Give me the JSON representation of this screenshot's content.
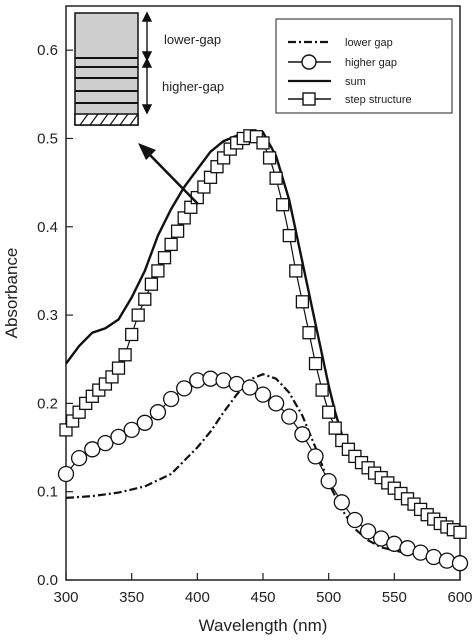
{
  "chart_data": {
    "type": "line",
    "xlabel": "Wavelength (nm)",
    "ylabel": "Absorbance",
    "xlim": [
      300,
      600
    ],
    "ylim": [
      0.0,
      0.65
    ],
    "xticks": [
      "300",
      "350",
      "400",
      "450",
      "500",
      "550",
      "600"
    ],
    "yticks": [
      "0.0",
      "0.1",
      "0.2",
      "0.3",
      "0.4",
      "0.5",
      "0.6"
    ],
    "grid": false,
    "legend_position": "top-right",
    "series": [
      {
        "name": "lower gap",
        "style": "dash-dot",
        "x": [
          300,
          320,
          340,
          360,
          380,
          400,
          410,
          420,
          430,
          440,
          450,
          460,
          470,
          480,
          490,
          500,
          510,
          520,
          530,
          540,
          560,
          580,
          600
        ],
        "y": [
          0.093,
          0.095,
          0.099,
          0.106,
          0.12,
          0.15,
          0.168,
          0.19,
          0.21,
          0.227,
          0.233,
          0.228,
          0.212,
          0.186,
          0.15,
          0.11,
          0.08,
          0.058,
          0.045,
          0.037,
          0.03,
          0.027,
          0.025
        ]
      },
      {
        "name": "higher gap",
        "style": "circle",
        "x": [
          300,
          310,
          320,
          330,
          340,
          350,
          360,
          370,
          380,
          390,
          400,
          410,
          420,
          430,
          440,
          450,
          460,
          470,
          480,
          490,
          500,
          510,
          520,
          530,
          540,
          550,
          560,
          570,
          580,
          590,
          600
        ],
        "y": [
          0.12,
          0.138,
          0.148,
          0.155,
          0.162,
          0.17,
          0.178,
          0.19,
          0.205,
          0.217,
          0.226,
          0.228,
          0.226,
          0.222,
          0.218,
          0.21,
          0.2,
          0.185,
          0.165,
          0.14,
          0.112,
          0.088,
          0.068,
          0.055,
          0.047,
          0.041,
          0.036,
          0.031,
          0.026,
          0.022,
          0.019
        ]
      },
      {
        "name": "sum",
        "style": "solid",
        "x": [
          300,
          310,
          320,
          330,
          340,
          350,
          360,
          370,
          380,
          390,
          400,
          410,
          420,
          430,
          440,
          450,
          460,
          470,
          480,
          490,
          500,
          505,
          510,
          520,
          530,
          540,
          550,
          560,
          570,
          580,
          590,
          600
        ],
        "y": [
          0.245,
          0.265,
          0.28,
          0.285,
          0.295,
          0.32,
          0.35,
          0.39,
          0.42,
          0.445,
          0.465,
          0.485,
          0.497,
          0.503,
          0.508,
          0.507,
          0.48,
          0.43,
          0.36,
          0.29,
          0.22,
          0.19,
          0.165,
          0.14,
          0.125,
          0.112,
          0.1,
          0.088,
          0.076,
          0.066,
          0.058,
          0.053
        ]
      },
      {
        "name": "step structure",
        "style": "square",
        "x": [
          300,
          305,
          310,
          315,
          320,
          325,
          330,
          335,
          340,
          345,
          350,
          355,
          360,
          365,
          370,
          375,
          380,
          385,
          390,
          395,
          400,
          405,
          410,
          415,
          420,
          425,
          430,
          435,
          440,
          445,
          450,
          455,
          460,
          465,
          470,
          475,
          480,
          485,
          490,
          495,
          500,
          505,
          510,
          515,
          520,
          525,
          530,
          535,
          540,
          545,
          550,
          555,
          560,
          565,
          570,
          575,
          580,
          585,
          590,
          595,
          600
        ],
        "y": [
          0.17,
          0.18,
          0.19,
          0.2,
          0.208,
          0.215,
          0.222,
          0.23,
          0.24,
          0.255,
          0.278,
          0.3,
          0.318,
          0.335,
          0.35,
          0.365,
          0.38,
          0.395,
          0.41,
          0.422,
          0.433,
          0.445,
          0.456,
          0.468,
          0.478,
          0.488,
          0.495,
          0.5,
          0.503,
          0.502,
          0.495,
          0.478,
          0.455,
          0.425,
          0.39,
          0.35,
          0.315,
          0.28,
          0.245,
          0.215,
          0.19,
          0.172,
          0.158,
          0.148,
          0.14,
          0.133,
          0.127,
          0.121,
          0.116,
          0.11,
          0.104,
          0.098,
          0.092,
          0.086,
          0.08,
          0.074,
          0.069,
          0.064,
          0.06,
          0.057,
          0.054
        ]
      }
    ],
    "inset": {
      "labels": [
        "lower-gap",
        "higher-gap"
      ]
    }
  }
}
